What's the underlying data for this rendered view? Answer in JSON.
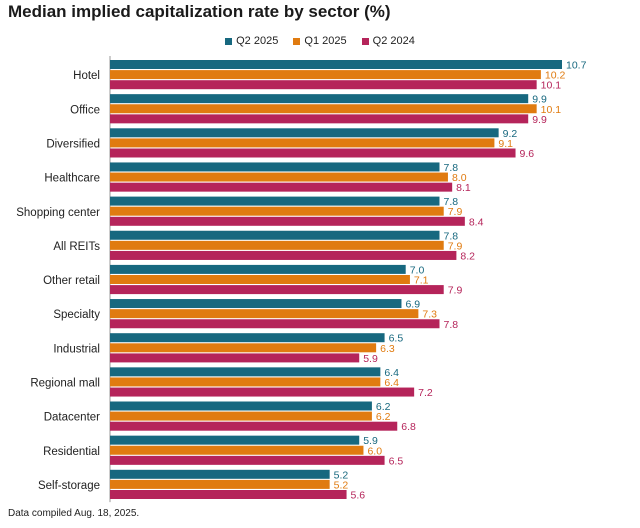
{
  "chart_data": {
    "type": "bar",
    "orientation": "horizontal",
    "title": "Median implied capitalization rate by sector (%)",
    "categories": [
      "Hotel",
      "Office",
      "Diversified",
      "Healthcare",
      "Shopping center",
      "All REITs",
      "Other retail",
      "Specialty",
      "Industrial",
      "Regional mall",
      "Datacenter",
      "Residential",
      "Self-storage"
    ],
    "series": [
      {
        "name": "Q2 2025",
        "color": "#17687f",
        "values": [
          10.7,
          9.9,
          9.2,
          7.8,
          7.8,
          7.8,
          7.0,
          6.9,
          6.5,
          6.4,
          6.2,
          5.9,
          5.2
        ],
        "labels": [
          "10.7",
          "9.9",
          "9.2",
          "7.8",
          "7.8",
          "7.8",
          "7.0",
          "6.9",
          "6.5",
          "6.4",
          "6.2",
          "5.9",
          "5.2"
        ]
      },
      {
        "name": "Q1 2025",
        "color": "#e07b10",
        "values": [
          10.2,
          10.1,
          9.1,
          8.0,
          7.9,
          7.9,
          7.1,
          7.3,
          6.3,
          6.4,
          6.2,
          6.0,
          5.2
        ],
        "labels": [
          "10.2",
          "10.1",
          "9.1",
          "8.0",
          "7.9",
          "7.9",
          "7.1",
          "7.3",
          "6.3",
          "6.4",
          "6.2",
          "6.0",
          "5.2"
        ]
      },
      {
        "name": "Q2 2024",
        "color": "#b5245a",
        "values": [
          10.1,
          9.9,
          9.6,
          8.1,
          8.4,
          8.2,
          7.9,
          7.8,
          5.9,
          7.2,
          6.8,
          6.5,
          5.6
        ],
        "labels": [
          "10.1",
          "9.9",
          "9.6",
          "8.1",
          "8.4",
          "8.2",
          "7.9",
          "7.8",
          "5.9",
          "7.2",
          "6.8",
          "6.5",
          "5.6"
        ]
      }
    ],
    "xlim": [
      0,
      10.7
    ],
    "grid": false,
    "legend_position": "top-center"
  },
  "footnote": "Data compiled Aug. 18, 2025."
}
